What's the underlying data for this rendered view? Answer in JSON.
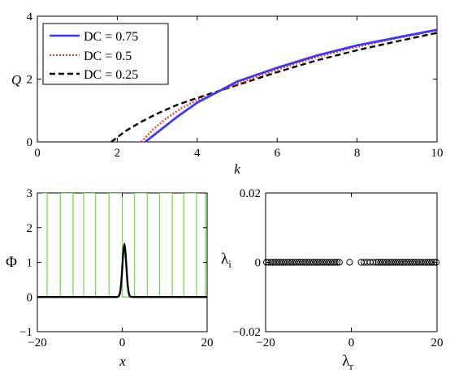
{
  "chart_data": [
    {
      "type": "line",
      "xlabel": "k",
      "ylabel": "Q",
      "xlim": [
        0,
        10
      ],
      "ylim": [
        0,
        4
      ],
      "xticks": [
        "0",
        "2",
        "4",
        "6",
        "8",
        "10"
      ],
      "yticks": [
        "0",
        "2",
        "4"
      ],
      "legend_position": "top-left",
      "series": [
        {
          "name": "DC = 0.75",
          "color": "#3b3bf0",
          "style": "solid",
          "x": [
            2.7,
            3.0,
            3.5,
            4.0,
            5.0,
            6.0,
            7.0,
            8.0,
            9.0,
            10.0
          ],
          "y": [
            0.0,
            0.3,
            0.8,
            1.25,
            1.92,
            2.36,
            2.75,
            3.07,
            3.32,
            3.57
          ]
        },
        {
          "name": "DC = 0.5",
          "color": "#e8433d",
          "style": "dotted",
          "x": [
            2.6,
            2.9,
            3.2,
            3.6,
            4.0,
            5.0,
            6.0,
            7.0,
            8.0,
            9.0,
            10.0
          ],
          "y": [
            0.0,
            0.4,
            0.72,
            1.07,
            1.33,
            1.84,
            2.3,
            2.7,
            3.03,
            3.3,
            3.55
          ]
        },
        {
          "name": "DC = 0.25",
          "color": "#000000",
          "style": "dashed",
          "x": [
            1.85,
            2.2,
            2.6,
            3.0,
            3.5,
            4.0,
            5.0,
            6.0,
            7.0,
            8.0,
            9.0,
            10.0
          ],
          "y": [
            0.0,
            0.34,
            0.64,
            0.9,
            1.18,
            1.4,
            1.81,
            2.22,
            2.6,
            2.92,
            3.2,
            3.47
          ]
        }
      ]
    },
    {
      "type": "line",
      "xlabel": "x",
      "ylabel": "Φ",
      "xlim": [
        -20,
        20
      ],
      "ylim": [
        -1,
        3
      ],
      "xticks": [
        "−20",
        "0",
        "20"
      ],
      "yticks": [
        "−1",
        "0",
        "1",
        "2",
        "3"
      ],
      "potential": {
        "color": "#66dd44",
        "level_high": 3,
        "level_low": 0,
        "high_intervals": [
          [
            -20.8,
            -17.7
          ],
          [
            -14.6,
            -11.6
          ],
          [
            -9.1,
            -6.3
          ],
          [
            -3.1,
            0.0
          ],
          [
            2.9,
            5.9
          ],
          [
            8.8,
            11.8
          ],
          [
            14.5,
            17.5
          ],
          [
            19.6,
            21
          ]
        ]
      },
      "soliton": {
        "color": "#000000",
        "center": 0.5,
        "amplitude": 1.5,
        "width": 0.65,
        "baseline": 0
      }
    },
    {
      "type": "scatter",
      "xlabel": "λ",
      "xlabel_sub": "r",
      "ylabel": "λ",
      "ylabel_sub": "i",
      "xlim": [
        -20,
        20
      ],
      "ylim": [
        -0.02,
        0.02
      ],
      "xticks": [
        "−20",
        "0",
        "20"
      ],
      "yticks": [
        "−0.02",
        "0",
        "0.02"
      ],
      "marker": "open-circle",
      "points_y": 0,
      "points_x": [
        -19.8,
        -19.3,
        -18.8,
        -18.3,
        -17.8,
        -17.3,
        -16.8,
        -16.3,
        -15.8,
        -15.3,
        -14.8,
        -14.3,
        -13.8,
        -13.3,
        -12.8,
        -12.3,
        -11.8,
        -11.3,
        -10.8,
        -10.3,
        -9.8,
        -9.3,
        -8.8,
        -8.3,
        -7.8,
        -7.3,
        -6.8,
        -6.3,
        -5.8,
        -5.3,
        -4.8,
        -4.3,
        -3.8,
        -3.3,
        -2.8,
        -0.4,
        2.3,
        3.0,
        3.7,
        4.4,
        5.1,
        5.8,
        6.3,
        6.8,
        7.3,
        7.8,
        8.3,
        8.8,
        9.3,
        9.8,
        10.3,
        10.8,
        11.3,
        11.8,
        12.3,
        12.8,
        13.3,
        13.8,
        14.3,
        14.8,
        15.3,
        15.8,
        16.3,
        16.8,
        17.3,
        17.8,
        18.3,
        18.8,
        19.3,
        19.8
      ]
    }
  ]
}
